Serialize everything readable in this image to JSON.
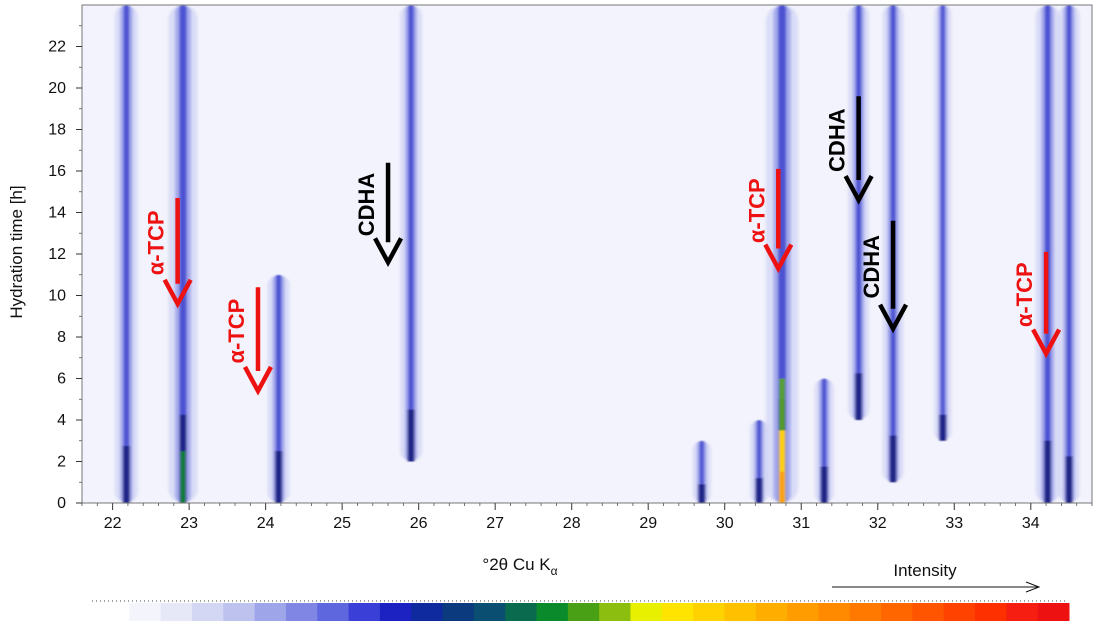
{
  "chart_data": {
    "type": "heatmap",
    "xlabel": "°2θ Cu K",
    "xlabel_subscript": "α",
    "ylabel": "Hydration time [h]",
    "xlim": [
      21.6,
      34.8
    ],
    "ylim": [
      0,
      24
    ],
    "x_ticks": [
      "22",
      "23",
      "24",
      "25",
      "26",
      "27",
      "28",
      "29",
      "30",
      "31",
      "32",
      "33",
      "34"
    ],
    "y_ticks": [
      "0",
      "2",
      "4",
      "6",
      "8",
      "10",
      "12",
      "14",
      "16",
      "18",
      "20",
      "22"
    ],
    "peaks": [
      {
        "two_theta": 22.18,
        "start_h": 0,
        "end_h": 24,
        "intensity": 0.55
      },
      {
        "two_theta": 22.92,
        "start_h": 0,
        "end_h": 24,
        "intensity": 0.85
      },
      {
        "two_theta": 24.17,
        "start_h": 0,
        "end_h": 11,
        "intensity": 0.5
      },
      {
        "two_theta": 25.9,
        "start_h": 2,
        "end_h": 24,
        "intensity": 0.5
      },
      {
        "two_theta": 29.7,
        "start_h": 0,
        "end_h": 3,
        "intensity": 0.3
      },
      {
        "two_theta": 30.45,
        "start_h": 0,
        "end_h": 4,
        "intensity": 0.3
      },
      {
        "two_theta": 30.75,
        "start_h": 0,
        "end_h": 24,
        "intensity": 1.0
      },
      {
        "two_theta": 31.3,
        "start_h": 0,
        "end_h": 6,
        "intensity": 0.35
      },
      {
        "two_theta": 31.75,
        "start_h": 4,
        "end_h": 24,
        "intensity": 0.45
      },
      {
        "two_theta": 32.2,
        "start_h": 1,
        "end_h": 24,
        "intensity": 0.45
      },
      {
        "two_theta": 32.85,
        "start_h": 3,
        "end_h": 24,
        "intensity": 0.25
      },
      {
        "two_theta": 34.22,
        "start_h": 0,
        "end_h": 24,
        "intensity": 0.6
      },
      {
        "two_theta": 34.5,
        "start_h": 0,
        "end_h": 24,
        "intensity": 0.45
      }
    ],
    "annotations": [
      {
        "text": "α-TCP",
        "color": "#ee1111",
        "x": 22.85,
        "y_top": 14.7,
        "y_tip": 9.6
      },
      {
        "text": "α-TCP",
        "color": "#ee1111",
        "x": 23.9,
        "y_top": 10.4,
        "y_tip": 5.4
      },
      {
        "text": "CDHA",
        "color": "#000000",
        "x": 25.6,
        "y_top": 16.4,
        "y_tip": 11.6
      },
      {
        "text": "α-TCP",
        "color": "#ee1111",
        "x": 30.7,
        "y_top": 16.1,
        "y_tip": 11.3
      },
      {
        "text": "CDHA",
        "color": "#000000",
        "x": 31.75,
        "y_top": 19.6,
        "y_tip": 14.6
      },
      {
        "text": "CDHA",
        "color": "#000000",
        "x": 32.2,
        "y_top": 13.6,
        "y_tip": 8.4
      },
      {
        "text": "α-TCP",
        "color": "#ee1111",
        "x": 34.2,
        "y_top": 12.1,
        "y_tip": 7.2
      }
    ],
    "colorbar": {
      "label": "Intensity",
      "colors": [
        "#ffffff",
        "#f3f4fc",
        "#e6e8f8",
        "#d4d7f3",
        "#bdc2ee",
        "#9ea5e8",
        "#7f86e4",
        "#5f67de",
        "#3a3fd8",
        "#1c22c2",
        "#0e2a9e",
        "#0c3a7e",
        "#0a4f72",
        "#0a6a4e",
        "#0a8a2a",
        "#4aa014",
        "#8cbe10",
        "#e8f000",
        "#ffe400",
        "#ffd200",
        "#ffc000",
        "#ffae00",
        "#ff9c00",
        "#ff8a00",
        "#ff7800",
        "#ff6600",
        "#ff5400",
        "#ff4200",
        "#ff3000",
        "#f51e10",
        "#ee1111"
      ]
    },
    "grid": false
  }
}
